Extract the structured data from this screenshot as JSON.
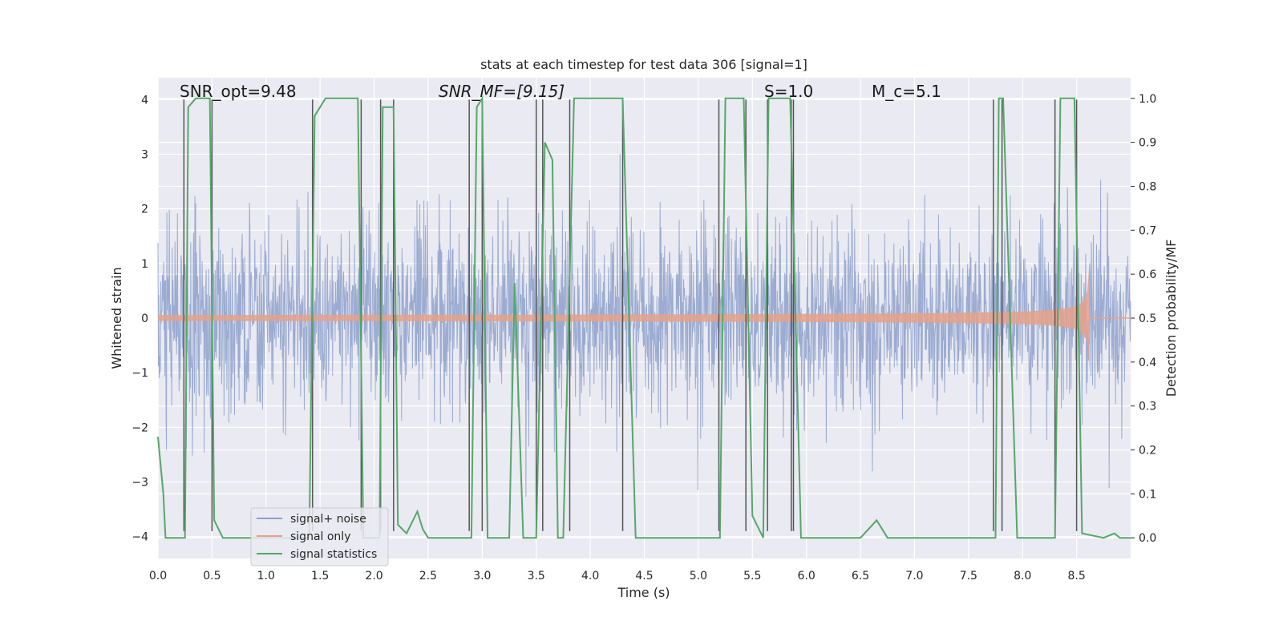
{
  "chart_data": {
    "type": "line",
    "title": "stats at each timestep for test data 306 [signal=1]",
    "xlabel": "Time (s)",
    "ylabel": "Whitened strain",
    "y2label": "Detection probability/MF",
    "xlim": [
      0.0,
      9.0
    ],
    "ylim": [
      -4.4,
      4.4
    ],
    "y2lim": [
      -0.047,
      1.047
    ],
    "xticks": [
      "0.0",
      "0.5",
      "1.0",
      "1.5",
      "2.0",
      "2.5",
      "3.0",
      "3.5",
      "4.0",
      "4.5",
      "5.0",
      "5.5",
      "6.0",
      "6.5",
      "7.0",
      "7.5",
      "8.0",
      "8.5"
    ],
    "xtick_values": [
      0.0,
      0.5,
      1.0,
      1.5,
      2.0,
      2.5,
      3.0,
      3.5,
      4.0,
      4.5,
      5.0,
      5.5,
      6.0,
      6.5,
      7.0,
      7.5,
      8.0,
      8.5
    ],
    "yticks": [
      "−4",
      "−3",
      "−2",
      "−1",
      "0",
      "1",
      "2",
      "3",
      "4"
    ],
    "ytick_values": [
      -4,
      -3,
      -2,
      -1,
      0,
      1,
      2,
      3,
      4
    ],
    "y2ticks": [
      "0.0",
      "0.1",
      "0.2",
      "0.3",
      "0.4",
      "0.5",
      "0.6",
      "0.7",
      "0.8",
      "0.9",
      "1.0"
    ],
    "y2tick_values": [
      0.0,
      0.1,
      0.2,
      0.3,
      0.4,
      0.5,
      0.6,
      0.7,
      0.8,
      0.9,
      1.0
    ],
    "grid": true,
    "legend_position": "lower-left",
    "annotations": [
      {
        "label": "SNR_opt=9.48",
        "x": 0.2,
        "y": 4.1
      },
      {
        "label": "SNR_MF=[9.15]",
        "x": 2.6,
        "y": 4.1
      },
      {
        "label": "S=1.0",
        "x": 5.6,
        "y": 4.1
      },
      {
        "label": "M_c=5.1",
        "x": 6.6,
        "y": 4.1
      }
    ],
    "series": [
      {
        "name": "signal+ noise",
        "color": "#8da0cb",
        "kind": "noise",
        "amplitude_std": 0.85
      },
      {
        "name": "signal only",
        "color": "#e5a18a",
        "kind": "chirp",
        "merger_time": 8.62,
        "peak_amplitude": 1.05
      },
      {
        "name": "signal statistics",
        "color": "#55a868",
        "kind": "prob",
        "points": [
          [
            0.0,
            0.23
          ],
          [
            0.05,
            0.1
          ],
          [
            0.07,
            0.0
          ],
          [
            0.25,
            0.0
          ],
          [
            0.28,
            0.98
          ],
          [
            0.35,
            1.0
          ],
          [
            0.48,
            1.0
          ],
          [
            0.52,
            0.04
          ],
          [
            0.6,
            0.0
          ],
          [
            0.8,
            0.0
          ],
          [
            1.4,
            0.0
          ],
          [
            1.45,
            0.96
          ],
          [
            1.55,
            1.0
          ],
          [
            1.85,
            1.0
          ],
          [
            1.9,
            0.0
          ],
          [
            2.05,
            0.0
          ],
          [
            2.08,
            0.98
          ],
          [
            2.18,
            0.98
          ],
          [
            2.22,
            0.03
          ],
          [
            2.3,
            0.01
          ],
          [
            2.4,
            0.06
          ],
          [
            2.45,
            0.02
          ],
          [
            2.5,
            0.0
          ],
          [
            2.9,
            0.0
          ],
          [
            2.95,
            0.98
          ],
          [
            3.0,
            1.0
          ],
          [
            3.05,
            0.0
          ],
          [
            3.25,
            0.0
          ],
          [
            3.3,
            0.58
          ],
          [
            3.38,
            0.0
          ],
          [
            3.5,
            0.0
          ],
          [
            3.58,
            0.9
          ],
          [
            3.65,
            0.86
          ],
          [
            3.7,
            0.0
          ],
          [
            3.75,
            0.0
          ],
          [
            3.85,
            1.0
          ],
          [
            4.3,
            1.0
          ],
          [
            4.42,
            0.0
          ],
          [
            5.2,
            0.0
          ],
          [
            5.25,
            1.0
          ],
          [
            5.42,
            1.0
          ],
          [
            5.5,
            0.05
          ],
          [
            5.6,
            0.0
          ],
          [
            5.65,
            1.0
          ],
          [
            5.85,
            1.0
          ],
          [
            5.95,
            0.0
          ],
          [
            6.5,
            0.0
          ],
          [
            6.65,
            0.04
          ],
          [
            6.75,
            0.0
          ],
          [
            7.75,
            0.0
          ],
          [
            7.78,
            1.0
          ],
          [
            7.82,
            1.0
          ],
          [
            7.95,
            0.0
          ],
          [
            8.3,
            0.0
          ],
          [
            8.35,
            1.0
          ],
          [
            8.48,
            1.0
          ],
          [
            8.55,
            0.01
          ],
          [
            8.75,
            0.0
          ],
          [
            8.85,
            0.01
          ],
          [
            8.9,
            0.0
          ],
          [
            9.0,
            0.0
          ]
        ]
      }
    ],
    "vertical_markers": [
      0.24,
      0.5,
      1.43,
      1.88,
      2.06,
      2.18,
      2.88,
      3.0,
      3.5,
      3.56,
      3.81,
      4.3,
      5.19,
      5.44,
      5.64,
      5.86,
      5.88,
      7.73,
      7.81,
      8.3,
      8.5
    ]
  }
}
